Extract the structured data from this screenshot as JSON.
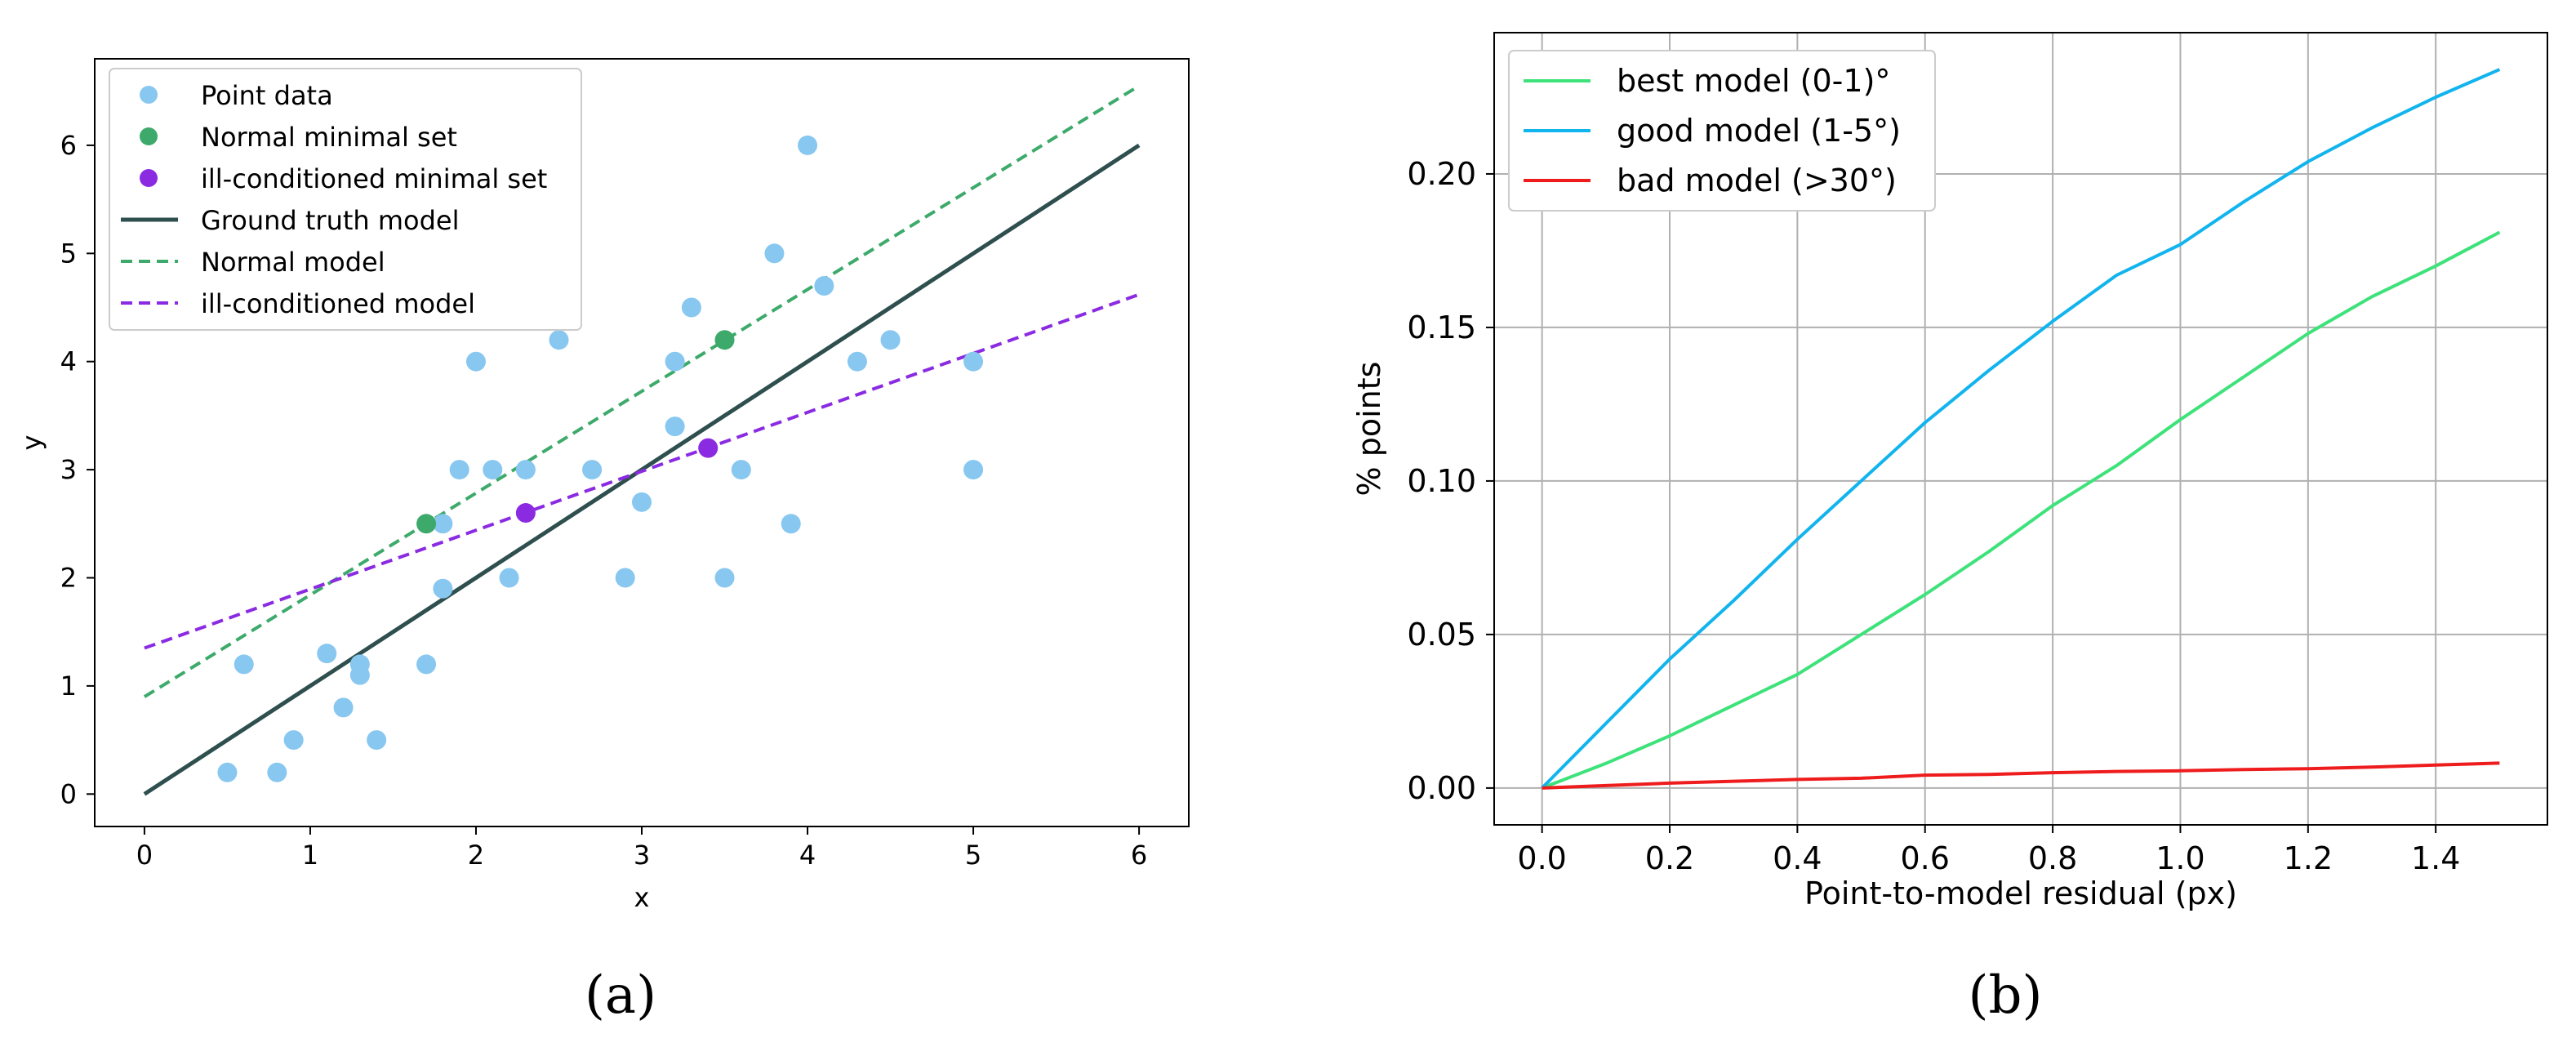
{
  "chart_data": [
    {
      "type": "scatter",
      "panel_label": "(a)",
      "xlabel": "x",
      "ylabel": "y",
      "xlim": [
        -0.3,
        6.3
      ],
      "ylim": [
        -0.3,
        6.8
      ],
      "xticks": [
        0,
        1,
        2,
        3,
        4,
        5,
        6
      ],
      "yticks": [
        0,
        1,
        2,
        3,
        4,
        5,
        6
      ],
      "grid": false,
      "legend_position": "top-left",
      "colors": {
        "point_data": "#87c7f0",
        "normal_set": "#3daa6b",
        "ill_set": "#8a2be2",
        "ground_truth": "#2f4f4f",
        "normal_model": "#3daa6b",
        "ill_model": "#8a2be2"
      },
      "legend": {
        "point_data": "Point data",
        "normal_set": "Normal minimal set",
        "ill_set": "ill-conditioned minimal set",
        "ground_truth": "Ground truth model",
        "normal_model": "Normal model",
        "ill_model": "ill-conditioned model"
      },
      "points": [
        [
          0.5,
          0.2
        ],
        [
          0.8,
          0.2
        ],
        [
          0.6,
          1.2
        ],
        [
          0.9,
          0.5
        ],
        [
          1.1,
          1.3
        ],
        [
          1.2,
          0.8
        ],
        [
          1.3,
          1.2
        ],
        [
          1.3,
          1.1
        ],
        [
          1.4,
          0.5
        ],
        [
          1.7,
          1.2
        ],
        [
          1.8,
          1.9
        ],
        [
          1.8,
          2.5
        ],
        [
          1.9,
          3.0
        ],
        [
          2.0,
          4.0
        ],
        [
          2.1,
          3.0
        ],
        [
          2.2,
          2.0
        ],
        [
          2.3,
          3.0
        ],
        [
          2.5,
          4.2
        ],
        [
          2.7,
          3.0
        ],
        [
          2.9,
          2.0
        ],
        [
          3.0,
          2.7
        ],
        [
          3.2,
          4.0
        ],
        [
          3.2,
          3.4
        ],
        [
          3.3,
          4.5
        ],
        [
          3.5,
          2.0
        ],
        [
          3.6,
          3.0
        ],
        [
          3.8,
          5.0
        ],
        [
          3.9,
          2.5
        ],
        [
          4.0,
          6.0
        ],
        [
          4.1,
          4.7
        ],
        [
          4.3,
          4.0
        ],
        [
          4.5,
          4.2
        ],
        [
          5.0,
          4.0
        ],
        [
          5.0,
          3.0
        ]
      ],
      "normal_set": [
        [
          1.7,
          2.5
        ],
        [
          3.5,
          4.2
        ]
      ],
      "ill_set": [
        [
          2.3,
          2.6
        ],
        [
          3.4,
          3.2
        ]
      ],
      "ground_truth_line": [
        [
          0,
          0
        ],
        [
          6,
          6
        ]
      ],
      "normal_model_line": [
        [
          0,
          0.9
        ],
        [
          6,
          6.55
        ]
      ],
      "ill_model_line": [
        [
          0,
          1.35
        ],
        [
          6,
          4.62
        ]
      ]
    },
    {
      "type": "line",
      "panel_label": "(b)",
      "xlabel": "Point-to-model residual (px)",
      "ylabel": "% points",
      "xlim": [
        -0.075,
        1.575
      ],
      "ylim": [
        -0.012,
        0.246
      ],
      "xticks": [
        "0.0",
        "0.2",
        "0.4",
        "0.6",
        "0.8",
        "1.0",
        "1.2",
        "1.4"
      ],
      "yticks": [
        "0.00",
        "0.05",
        "0.10",
        "0.15",
        "0.20"
      ],
      "grid": true,
      "legend_position": "top-left",
      "series": [
        {
          "name": "best model (0-1)°",
          "color": "#3ee27a",
          "x": [
            0,
            0.1,
            0.2,
            0.3,
            0.4,
            0.5,
            0.6,
            0.7,
            0.8,
            0.9,
            1.0,
            1.1,
            1.2,
            1.3,
            1.4,
            1.5
          ],
          "y": [
            0,
            0.008,
            0.017,
            0.027,
            0.037,
            0.05,
            0.063,
            0.077,
            0.092,
            0.105,
            0.12,
            0.134,
            0.148,
            0.16,
            0.17,
            0.181
          ]
        },
        {
          "name": "good model (1-5°)",
          "color": "#12b4ee",
          "x": [
            0,
            0.1,
            0.2,
            0.3,
            0.4,
            0.5,
            0.6,
            0.7,
            0.8,
            0.9,
            1.0,
            1.1,
            1.2,
            1.3,
            1.4,
            1.5
          ],
          "y": [
            0,
            0.021,
            0.042,
            0.061,
            0.081,
            0.1,
            0.119,
            0.136,
            0.152,
            0.167,
            0.177,
            0.191,
            0.204,
            0.215,
            0.225,
            0.234
          ]
        },
        {
          "name": "bad model (>30°)",
          "color": "#ee1c1c",
          "x": [
            0,
            0.1,
            0.2,
            0.3,
            0.4,
            0.5,
            0.6,
            0.7,
            0.8,
            0.9,
            1.0,
            1.1,
            1.2,
            1.3,
            1.4,
            1.5
          ],
          "y": [
            0,
            0.0008,
            0.0016,
            0.0022,
            0.0028,
            0.0032,
            0.0042,
            0.0044,
            0.005,
            0.0054,
            0.0056,
            0.006,
            0.0063,
            0.0068,
            0.0075,
            0.0081
          ]
        }
      ]
    }
  ]
}
